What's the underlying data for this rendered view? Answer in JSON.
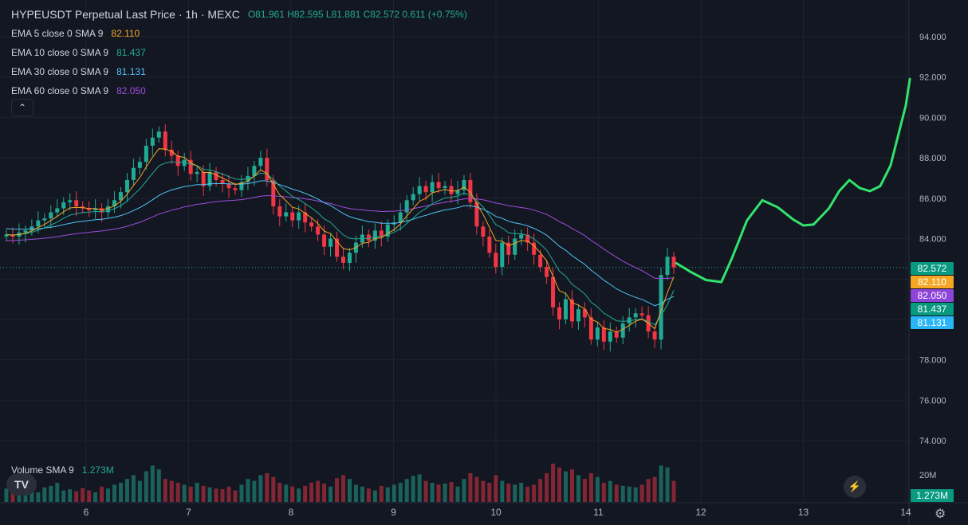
{
  "header": {
    "title": "HYPEUSDT Perpetual Last Price · 1h · MEXC",
    "ohlc": "O81.961 H82.595 L81.881 C82.572 0.611 (+0.75%)"
  },
  "indicators": [
    {
      "label": "EMA 5 close 0 SMA 9",
      "value": "82.110",
      "color": "#f5a623"
    },
    {
      "label": "EMA 10 close 0 SMA 9",
      "value": "81.437",
      "color": "#22ab94"
    },
    {
      "label": "EMA 30 close 0 SMA 9",
      "value": "81.131",
      "color": "#4fc3f7"
    },
    {
      "label": "EMA 60 close 0 SMA 9",
      "value": "82.050",
      "color": "#9c4dde"
    }
  ],
  "volume": {
    "label": "Volume SMA 9",
    "value": "1.273M",
    "axis_tick": "20M",
    "badge": "1.273M"
  },
  "price_badges": [
    {
      "text": "82.572",
      "value": 82.572,
      "color": "#089981"
    },
    {
      "text": "82.110",
      "value": 82.11,
      "color": "#f5a623"
    },
    {
      "text": "82.050",
      "value": 82.05,
      "color": "#8e44d9"
    },
    {
      "text": "81.437",
      "value": 81.437,
      "color": "#089981"
    },
    {
      "text": "81.131",
      "value": 81.131,
      "color": "#29b6f6"
    }
  ],
  "colors": {
    "up": "#22ab94",
    "down": "#f23645",
    "projection": "#32e36c",
    "bg": "#131722",
    "grid": "#1e222d"
  },
  "chart_data": {
    "type": "candlestick",
    "y_ticks": [
      "94.000",
      "92.000",
      "90.000",
      "88.000",
      "86.000",
      "84.000",
      "82.000",
      "80.000",
      "78.000",
      "76.000",
      "74.000"
    ],
    "ylim": [
      73,
      95
    ],
    "x_ticks": [
      "6",
      "7",
      "8",
      "9",
      "10",
      "11",
      "12",
      "13",
      "14"
    ],
    "xlim": [
      5.22,
      14.02
    ],
    "candle_close": [
      84.2,
      84.1,
      84.3,
      84.4,
      84.6,
      84.9,
      85.0,
      85.3,
      85.5,
      85.8,
      85.9,
      85.6,
      85.5,
      85.4,
      85.5,
      85.3,
      85.6,
      85.9,
      86.3,
      86.9,
      87.5,
      87.8,
      88.6,
      89.0,
      89.3,
      88.4,
      88.1,
      87.6,
      87.9,
      87.2,
      87.3,
      86.6,
      87.3,
      86.9,
      86.7,
      86.5,
      86.4,
      86.8,
      87.1,
      87.6,
      88.0,
      86.9,
      85.6,
      85.1,
      85.3,
      84.9,
      85.3,
      84.8,
      84.6,
      84.2,
      83.6,
      84.0,
      83.1,
      82.8,
      83.3,
      83.8,
      84.2,
      83.9,
      84.4,
      84.1,
      84.7,
      84.8,
      85.3,
      85.9,
      86.2,
      86.6,
      86.3,
      86.8,
      86.5,
      86.6,
      86.2,
      86.4,
      86.9,
      85.8,
      84.6,
      84.1,
      83.3,
      82.6,
      83.8,
      83.2,
      84.0,
      84.2,
      83.8,
      83.2,
      82.6,
      82.1,
      80.6,
      80.0,
      81.0,
      79.9,
      80.5,
      80.1,
      79.0,
      79.6,
      78.9,
      79.4,
      79.1,
      79.8,
      80.1,
      80.3,
      80.2,
      79.4,
      79.0,
      82.2,
      83.1,
      82.572
    ],
    "ema_5": [
      84.2,
      84.17,
      84.21,
      84.27,
      84.38,
      84.55,
      84.7,
      84.9,
      85.1,
      85.33,
      85.52,
      85.55,
      85.53,
      85.49,
      85.49,
      85.43,
      85.49,
      85.62,
      85.85,
      86.2,
      86.63,
      87.02,
      87.55,
      88.03,
      88.45,
      88.43,
      88.32,
      88.08,
      88.02,
      87.75,
      87.6,
      87.27,
      87.28,
      87.15,
      87.0,
      86.84,
      86.69,
      86.73,
      86.85,
      87.1,
      87.4,
      87.23,
      86.69,
      86.16,
      85.87,
      85.55,
      85.47,
      85.25,
      85.03,
      84.75,
      84.37,
      84.25,
      83.87,
      83.51,
      83.44,
      83.56,
      83.77,
      83.81,
      84.01,
      84.04,
      84.26,
      84.44,
      84.73,
      85.12,
      85.48,
      85.85,
      86.0,
      86.27,
      86.35,
      86.43,
      86.35,
      86.37,
      86.55,
      86.3,
      85.73,
      85.19,
      84.56,
      83.91,
      83.87,
      83.65,
      83.77,
      83.91,
      83.87,
      83.65,
      83.3,
      82.9,
      82.13,
      81.42,
      81.28,
      80.82,
      80.71,
      80.51,
      80.0,
      79.87,
      79.55,
      79.5,
      79.37,
      79.51,
      79.71,
      79.91,
      80.01,
      79.81,
      79.54,
      80.43,
      81.32,
      82.11
    ],
    "ema_10": [
      84.2,
      84.18,
      84.2,
      84.24,
      84.31,
      84.42,
      84.53,
      84.67,
      84.82,
      85.0,
      85.16,
      85.24,
      85.29,
      85.31,
      85.34,
      85.33,
      85.38,
      85.48,
      85.63,
      85.86,
      86.16,
      86.46,
      86.84,
      87.23,
      87.6,
      87.74,
      87.81,
      87.77,
      87.79,
      87.68,
      87.61,
      87.42,
      87.4,
      87.31,
      87.2,
      87.07,
      86.95,
      86.93,
      86.96,
      87.08,
      87.25,
      87.19,
      86.92,
      86.6,
      86.36,
      86.09,
      85.94,
      85.73,
      85.52,
      85.28,
      84.98,
      84.8,
      84.49,
      84.18,
      84.02,
      83.98,
      84.02,
      83.99,
      84.1,
      84.1,
      84.2,
      84.31,
      84.49,
      84.75,
      85.01,
      85.3,
      85.49,
      85.73,
      85.87,
      86.01,
      86.04,
      86.11,
      86.25,
      86.17,
      85.89,
      85.56,
      85.15,
      84.69,
      84.53,
      84.29,
      84.24,
      84.24,
      84.15,
      83.98,
      83.73,
      83.43,
      82.92,
      82.39,
      82.14,
      81.73,
      81.51,
      81.26,
      80.85,
      80.62,
      80.31,
      80.12,
      79.93,
      79.9,
      79.93,
      79.99,
      80.02,
      79.89,
      79.73,
      80.19,
      80.72,
      81.437
    ],
    "ema_30": [
      84.5,
      84.47,
      84.46,
      84.46,
      84.47,
      84.49,
      84.52,
      84.56,
      84.62,
      84.69,
      84.76,
      84.82,
      84.86,
      84.9,
      84.94,
      84.96,
      85.0,
      85.06,
      85.14,
      85.25,
      85.39,
      85.54,
      85.72,
      85.92,
      86.14,
      86.29,
      86.41,
      86.49,
      86.58,
      86.62,
      86.67,
      86.67,
      86.71,
      86.72,
      86.72,
      86.71,
      86.69,
      86.7,
      86.72,
      86.78,
      86.86,
      86.86,
      86.78,
      86.67,
      86.57,
      86.45,
      86.36,
      86.24,
      86.11,
      85.96,
      85.78,
      85.64,
      85.44,
      85.24,
      85.09,
      84.99,
      84.92,
      84.84,
      84.81,
      84.76,
      84.76,
      84.76,
      84.8,
      84.87,
      84.96,
      85.07,
      85.15,
      85.26,
      85.34,
      85.42,
      85.47,
      85.53,
      85.62,
      85.63,
      85.56,
      85.45,
      85.3,
      85.1,
      85.0,
      84.86,
      84.78,
      84.72,
      84.63,
      84.51,
      84.35,
      84.17,
      83.9,
      83.62,
      83.42,
      83.15,
      82.94,
      82.72,
      82.43,
      82.2,
      81.94,
      81.73,
      81.51,
      81.35,
      81.21,
      81.09,
      80.99,
      80.84,
      80.68,
      80.78,
      81.0,
      81.131
    ],
    "ema_60": [
      83.9,
      83.91,
      83.92,
      83.94,
      83.96,
      83.99,
      84.02,
      84.06,
      84.1,
      84.15,
      84.2,
      84.24,
      84.28,
      84.31,
      84.35,
      84.38,
      84.42,
      84.47,
      84.53,
      84.61,
      84.71,
      84.81,
      84.94,
      85.07,
      85.21,
      85.31,
      85.41,
      85.48,
      85.57,
      85.63,
      85.7,
      85.73,
      85.79,
      85.83,
      85.86,
      85.88,
      85.9,
      85.93,
      85.98,
      86.04,
      86.1,
      86.13,
      86.12,
      86.09,
      86.07,
      86.03,
      86.01,
      85.97,
      85.92,
      85.86,
      85.79,
      85.74,
      85.65,
      85.56,
      85.49,
      85.45,
      85.42,
      85.38,
      85.37,
      85.34,
      85.35,
      85.36,
      85.38,
      85.42,
      85.48,
      85.55,
      85.61,
      85.68,
      85.74,
      85.8,
      85.85,
      85.9,
      85.96,
      85.98,
      85.96,
      85.92,
      85.85,
      85.76,
      85.71,
      85.63,
      85.58,
      85.54,
      85.49,
      85.41,
      85.31,
      85.2,
      85.03,
      84.84,
      84.69,
      84.5,
      84.33,
      84.15,
      83.91,
      83.71,
      83.48,
      83.28,
      83.07,
      82.88,
      82.72,
      82.56,
      82.41,
      82.23,
      82.04,
      82.02,
      82.04,
      82.05
    ],
    "volume_ratio": [
      0.35,
      0.3,
      0.4,
      0.45,
      0.3,
      0.25,
      0.38,
      0.42,
      0.5,
      0.3,
      0.33,
      0.28,
      0.36,
      0.3,
      0.25,
      0.4,
      0.35,
      0.45,
      0.5,
      0.6,
      0.7,
      0.55,
      0.8,
      0.95,
      0.85,
      0.6,
      0.55,
      0.5,
      0.45,
      0.4,
      0.5,
      0.42,
      0.38,
      0.35,
      0.33,
      0.4,
      0.3,
      0.45,
      0.6,
      0.55,
      0.7,
      0.75,
      0.65,
      0.5,
      0.45,
      0.4,
      0.35,
      0.42,
      0.5,
      0.55,
      0.48,
      0.4,
      0.62,
      0.7,
      0.6,
      0.45,
      0.4,
      0.35,
      0.3,
      0.42,
      0.38,
      0.45,
      0.5,
      0.6,
      0.68,
      0.72,
      0.55,
      0.5,
      0.45,
      0.48,
      0.52,
      0.4,
      0.6,
      0.75,
      0.65,
      0.55,
      0.5,
      0.7,
      0.55,
      0.48,
      0.45,
      0.5,
      0.4,
      0.45,
      0.6,
      0.75,
      1.0,
      0.9,
      0.8,
      0.85,
      0.7,
      0.6,
      0.75,
      0.65,
      0.5,
      0.55,
      0.45,
      0.42,
      0.4,
      0.38,
      0.45,
      0.6,
      0.65,
      0.95,
      0.9,
      0.55
    ],
    "projection": [
      [
        11.76,
        82.78
      ],
      [
        11.9,
        82.35
      ],
      [
        12.05,
        81.95
      ],
      [
        12.2,
        81.85
      ],
      [
        12.3,
        83.0
      ],
      [
        12.45,
        84.9
      ],
      [
        12.6,
        85.9
      ],
      [
        12.75,
        85.55
      ],
      [
        12.9,
        84.95
      ],
      [
        13.0,
        84.65
      ],
      [
        13.1,
        84.7
      ],
      [
        13.25,
        85.5
      ],
      [
        13.35,
        86.35
      ],
      [
        13.45,
        86.9
      ],
      [
        13.55,
        86.5
      ],
      [
        13.65,
        86.35
      ],
      [
        13.75,
        86.6
      ],
      [
        13.85,
        87.6
      ],
      [
        13.95,
        89.6
      ],
      [
        14.0,
        90.6
      ],
      [
        14.04,
        91.9
      ]
    ]
  }
}
